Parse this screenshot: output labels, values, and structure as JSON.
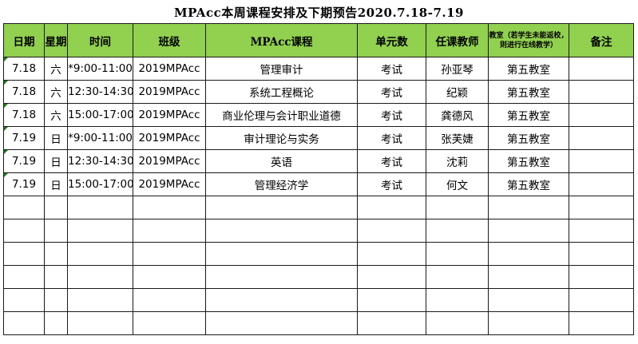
{
  "title": "MPAcc本周课程安排及下期预告2020.7.18-7.19",
  "header_color": "#92d050",
  "columns": [
    "日期",
    "星期",
    "时间",
    "班级",
    "MPAcc课程",
    "单元数",
    "任课教师",
    "教室（若学生未能返校，则进行在线教学）",
    "备注"
  ],
  "rows": [
    [
      "7.18",
      "六",
      "*9:00-11:00",
      "2019MPAcc",
      "管理审计",
      "考试",
      "孙亚琴",
      "第五教室",
      ""
    ],
    [
      "7.18",
      "六",
      "12:30-14:30",
      "2019MPAcc",
      "系统工程概论",
      "考试",
      "纪颖",
      "第五教室",
      ""
    ],
    [
      "7.18",
      "六",
      "15:00-17:00",
      "2019MPAcc",
      "商业伦理与会计职业道德",
      "考试",
      "龚德风",
      "第五教室",
      ""
    ],
    [
      "7.19",
      "日",
      "*9:00-11:00",
      "2019MPAcc",
      "审计理论与实务",
      "考试",
      "张芙婕",
      "第五教室",
      ""
    ],
    [
      "7.19",
      "日",
      "12:30-14:30",
      "2019MPAcc",
      "英语",
      "考试",
      "沈莉",
      "第五教室",
      ""
    ],
    [
      "7.19",
      "日",
      "15:00-17:00",
      "2019MPAcc",
      "管理经济学",
      "考试",
      "何文",
      "第五教室",
      ""
    ]
  ],
  "empty_rows": 6
}
